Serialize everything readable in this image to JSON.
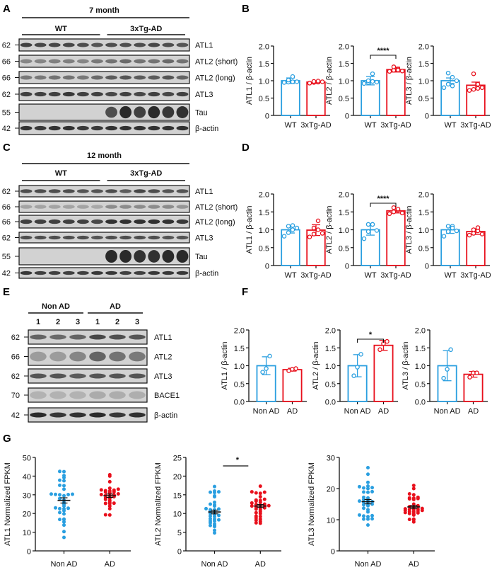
{
  "panel_labels": [
    "A",
    "B",
    "C",
    "D",
    "E",
    "F",
    "G"
  ],
  "colors": {
    "control": "#2a9fe0",
    "disease": "#e8101c",
    "axis": "#111111",
    "blot_bg": "#d2d2d2",
    "band": "#2a2a2a"
  },
  "blots": [
    {
      "id": "A",
      "title": "7 month",
      "groups": [
        {
          "name": "WT",
          "lanes": 6
        },
        {
          "name": "3xTg-AD",
          "lanes": 6
        }
      ],
      "lane_numbers": [],
      "rows": [
        {
          "mw": "62",
          "label": "ATL1",
          "intensity": [
            0.85,
            0.8,
            0.8,
            0.8,
            0.75,
            0.7,
            0.75,
            0.75,
            0.75,
            0.8,
            0.75,
            0.7
          ]
        },
        {
          "mw": "66",
          "label": "ATL2 (short)",
          "intensity": [
            0.35,
            0.35,
            0.4,
            0.4,
            0.35,
            0.45,
            0.5,
            0.55,
            0.5,
            0.5,
            0.55,
            0.5
          ]
        },
        {
          "mw": "66",
          "label": "ATL2 (long)",
          "intensity": [
            0.45,
            0.45,
            0.5,
            0.5,
            0.45,
            0.55,
            0.65,
            0.7,
            0.65,
            0.65,
            0.7,
            0.6
          ]
        },
        {
          "mw": "62",
          "label": "ATL3",
          "intensity": [
            0.85,
            0.85,
            0.85,
            0.9,
            0.85,
            0.85,
            0.8,
            0.85,
            0.8,
            0.85,
            0.8,
            0.85
          ]
        },
        {
          "mw": "55",
          "label": "Tau",
          "intensity": [
            0,
            0,
            0,
            0,
            0,
            0,
            0.75,
            1,
            0.85,
            1,
            0.9,
            0.95
          ],
          "tall": true
        },
        {
          "mw": "42",
          "label": "β-actin",
          "intensity": [
            0.95,
            0.9,
            0.95,
            0.95,
            0.9,
            0.9,
            0.95,
            0.95,
            0.95,
            0.95,
            0.95,
            0.95
          ]
        }
      ]
    },
    {
      "id": "C",
      "title": "12 month",
      "groups": [
        {
          "name": "WT",
          "lanes": 6
        },
        {
          "name": "3xTg-AD",
          "lanes": 6
        }
      ],
      "lane_numbers": [],
      "rows": [
        {
          "mw": "62",
          "label": "ATL1",
          "intensity": [
            0.75,
            0.75,
            0.75,
            0.75,
            0.7,
            0.7,
            0.75,
            0.65,
            0.8,
            0.75,
            0.7,
            0.7
          ]
        },
        {
          "mw": "66",
          "label": "ATL2 (short)",
          "intensity": [
            0.15,
            0.15,
            0.15,
            0.15,
            0.15,
            0.12,
            0.3,
            0.3,
            0.3,
            0.3,
            0.3,
            0.25
          ]
        },
        {
          "mw": "66",
          "label": "ATL2 (long)",
          "intensity": [
            0.85,
            0.85,
            0.85,
            0.85,
            0.85,
            0.8,
            0.95,
            0.95,
            0.95,
            0.95,
            0.95,
            0.9
          ]
        },
        {
          "mw": "62",
          "label": "ATL3",
          "intensity": [
            0.75,
            0.75,
            0.75,
            0.75,
            0.75,
            0.7,
            0.75,
            0.75,
            0.75,
            0.75,
            0.7,
            0.7
          ]
        },
        {
          "mw": "55",
          "label": "Tau",
          "intensity": [
            0,
            0,
            0,
            0,
            0,
            0,
            1,
            1,
            0.95,
            0.95,
            1,
            1
          ],
          "tall": true
        },
        {
          "mw": "42",
          "label": "β-actin",
          "intensity": [
            0.9,
            0.85,
            0.85,
            0.85,
            0.85,
            0.9,
            0.9,
            0.85,
            0.85,
            0.9,
            0.9,
            0.9
          ]
        }
      ]
    },
    {
      "id": "E",
      "title": "",
      "groups": [
        {
          "name": "Non AD",
          "lanes": 3
        },
        {
          "name": "AD",
          "lanes": 3
        }
      ],
      "lane_numbers": [
        "1",
        "2",
        "3",
        "1",
        "2",
        "3"
      ],
      "rows": [
        {
          "mw": "62",
          "label": "ATL1",
          "intensity": [
            0.6,
            0.55,
            0.6,
            0.8,
            0.75,
            0.7
          ]
        },
        {
          "mw": "66",
          "label": "ATL2",
          "intensity": [
            0.2,
            0.2,
            0.35,
            0.6,
            0.5,
            0.45
          ],
          "diffuse": true
        },
        {
          "mw": "62",
          "label": "ATL3",
          "intensity": [
            0.7,
            0.7,
            0.65,
            0.7,
            0.7,
            0.7
          ]
        },
        {
          "mw": "70",
          "label": "BACE1",
          "intensity": [
            0.05,
            0.05,
            0.05,
            0.1,
            0.08,
            0.07
          ],
          "diffuse": true
        },
        {
          "mw": "42",
          "label": "β-actin",
          "intensity": [
            1,
            0.9,
            0.95,
            1,
            0.9,
            0.95
          ]
        }
      ]
    }
  ],
  "chart_data": [
    {
      "panel": "B",
      "type": "bar",
      "ylabel": "ATL1 / β-actin",
      "categories": [
        "WT",
        "3xTg-AD"
      ],
      "ylim": [
        0,
        2.0
      ],
      "yticks": [
        "0",
        "0.5",
        "1.0",
        "1.5",
        "2.0"
      ],
      "values": [
        1.0,
        0.96
      ],
      "errors": [
        0.08,
        0.04
      ],
      "points": [
        [
          0.95,
          0.96,
          0.97,
          1.02,
          1.12,
          0.97
        ],
        [
          0.93,
          0.95,
          0.96,
          0.98,
          0.99,
          0.97
        ]
      ],
      "significance": ""
    },
    {
      "panel": "B",
      "type": "bar",
      "ylabel": "ATL2 / β-actin",
      "categories": [
        "WT",
        "3xTg-AD"
      ],
      "ylim": [
        0,
        2.0
      ],
      "yticks": [
        "0",
        "0.5",
        "1.0",
        "1.5",
        "2.0"
      ],
      "values": [
        1.0,
        1.32
      ],
      "errors": [
        0.12,
        0.07
      ],
      "points": [
        [
          0.92,
          0.95,
          0.98,
          1.0,
          1.2,
          0.96
        ],
        [
          1.27,
          1.3,
          1.34,
          1.4,
          1.31,
          1.28
        ]
      ],
      "significance": "****"
    },
    {
      "panel": "B",
      "type": "bar",
      "ylabel": "ATL3 / β-actin",
      "categories": [
        "WT",
        "3xTg-AD"
      ],
      "ylim": [
        0,
        2.0
      ],
      "yticks": [
        "0",
        "0.5",
        "1.0",
        "1.5",
        "2.0"
      ],
      "values": [
        1.0,
        0.87
      ],
      "errors": [
        0.08,
        0.09
      ],
      "points": [
        [
          0.8,
          0.9,
          1.1,
          1.22,
          0.85,
          1.0
        ],
        [
          0.72,
          0.75,
          0.9,
          1.2,
          0.78,
          0.8
        ]
      ],
      "significance": ""
    },
    {
      "panel": "D",
      "type": "bar",
      "ylabel": "ATL1 / β-actin",
      "categories": [
        "WT",
        "3xTg-AD"
      ],
      "ylim": [
        0,
        2.0
      ],
      "yticks": [
        "0",
        "0.5",
        "1.0",
        "1.5",
        "2.0"
      ],
      "values": [
        1.0,
        0.99
      ],
      "errors": [
        0.09,
        0.15
      ],
      "points": [
        [
          0.82,
          0.92,
          1.0,
          1.1,
          1.12,
          1.05
        ],
        [
          0.8,
          0.88,
          1.0,
          1.05,
          1.25,
          0.9
        ]
      ],
      "significance": ""
    },
    {
      "panel": "D",
      "type": "bar",
      "ylabel": "ATL2 / β-actin",
      "categories": [
        "WT",
        "3xTg-AD"
      ],
      "ylim": [
        0,
        2.0
      ],
      "yticks": [
        "0",
        "0.5",
        "1.0",
        "1.5",
        "2.0"
      ],
      "values": [
        1.0,
        1.53
      ],
      "errors": [
        0.15,
        0.06
      ],
      "points": [
        [
          0.75,
          0.95,
          1.15,
          1.15,
          1.15,
          0.98
        ],
        [
          1.45,
          1.5,
          1.55,
          1.62,
          1.58,
          1.47
        ]
      ],
      "significance": "****"
    },
    {
      "panel": "D",
      "type": "bar",
      "ylabel": "ATL3 / β-actin",
      "categories": [
        "WT",
        "3xTg-AD"
      ],
      "ylim": [
        0,
        2.0
      ],
      "yticks": [
        "0",
        "0.5",
        "1.0",
        "1.5",
        "2.0"
      ],
      "values": [
        1.0,
        0.95
      ],
      "errors": [
        0.1,
        0.08
      ],
      "points": [
        [
          0.82,
          0.95,
          1.1,
          1.1,
          1.05,
          0.97
        ],
        [
          0.85,
          0.9,
          0.97,
          1.0,
          1.06,
          0.88
        ]
      ],
      "significance": ""
    },
    {
      "panel": "F",
      "type": "bar",
      "ylabel": "ATL1 / β-actin",
      "categories": [
        "Non AD",
        "AD"
      ],
      "ylim": [
        0,
        2.0
      ],
      "yticks": [
        "0.0",
        "0.5",
        "1.0",
        "1.5",
        "2.0"
      ],
      "values": [
        1.0,
        0.89
      ],
      "errors": [
        0.25,
        0.04
      ],
      "points": [
        [
          0.82,
          0.92,
          1.27
        ],
        [
          0.86,
          0.9,
          0.92
        ]
      ],
      "significance": ""
    },
    {
      "panel": "F",
      "type": "bar",
      "ylabel": "ATL2 / β-actin",
      "categories": [
        "Non AD",
        "AD"
      ],
      "ylim": [
        0,
        2.0
      ],
      "yticks": [
        "0.0",
        "0.5",
        "1.0",
        "1.5",
        "2.0"
      ],
      "values": [
        1.0,
        1.57
      ],
      "errors": [
        0.31,
        0.14
      ],
      "points": [
        [
          0.72,
          0.96,
          1.32
        ],
        [
          1.45,
          1.62,
          1.68
        ]
      ],
      "significance": "*"
    },
    {
      "panel": "F",
      "type": "bar",
      "ylabel": "ATL3 / β-actin",
      "categories": [
        "Non AD",
        "AD"
      ],
      "ylim": [
        0,
        2.0
      ],
      "yticks": [
        "0.0",
        "0.5",
        "1.0",
        "1.5",
        "2.0"
      ],
      "values": [
        1.0,
        0.76
      ],
      "errors": [
        0.42,
        0.08
      ],
      "points": [
        [
          0.65,
          0.9,
          1.45
        ],
        [
          0.68,
          0.8,
          0.8
        ]
      ],
      "significance": ""
    },
    {
      "panel": "G",
      "type": "scatter",
      "ylabel": "ATL1 Normalized FPKM",
      "categories": [
        "Non AD",
        "AD"
      ],
      "ylim": [
        0,
        50
      ],
      "yticks": [
        "0",
        "10",
        "20",
        "30",
        "40",
        "50"
      ],
      "means": [
        27,
        29.5
      ],
      "sems": [
        1.4,
        0.9
      ],
      "significance": "",
      "points": [
        [
          7.2,
          10.3,
          13.8,
          15.5,
          16.8,
          16.8,
          17.0,
          19.8,
          20.5,
          21.5,
          22.5,
          22.8,
          22.6,
          23.0,
          24.0,
          25.0,
          26.0,
          27.2,
          28.0,
          29.5,
          30.2,
          30.4,
          30.0,
          30.1,
          30.3,
          33.0,
          34.9,
          35.1,
          37.5,
          37.8,
          39.2,
          40.3,
          42.4,
          42.5
        ],
        [
          19.2,
          19.3,
          22.6,
          24.0,
          25.3,
          25.4,
          25.5,
          26.0,
          27.0,
          27.5,
          28.2,
          28.3,
          29.0,
          29.5,
          29.6,
          30.0,
          30.1,
          30.5,
          31.0,
          31.5,
          31.6,
          32.0,
          32.2,
          32.5,
          32.6,
          33.0,
          33.5,
          37.0,
          40.0,
          40.7
        ]
      ]
    },
    {
      "panel": "G",
      "type": "scatter",
      "ylabel": "ATL2 Normalized FPKM",
      "categories": [
        "Non AD",
        "AD"
      ],
      "ylim": [
        0,
        25
      ],
      "yticks": [
        "0",
        "5",
        "10",
        "15",
        "20",
        "25"
      ],
      "means": [
        10.4,
        12.0
      ],
      "sems": [
        0.5,
        0.4
      ],
      "significance": "*",
      "points": [
        [
          4.8,
          5.5,
          6.5,
          6.8,
          6.8,
          7.2,
          7.5,
          8.0,
          8.0,
          8.3,
          8.5,
          8.6,
          9.2,
          9.3,
          9.5,
          9.8,
          10.0,
          10.4,
          10.6,
          11.0,
          11.0,
          11.2,
          11.3,
          12.0,
          12.3,
          12.5,
          13.0,
          14.5,
          14.7,
          15.6,
          15.7,
          15.8,
          16.0,
          17.2
        ],
        [
          7.4,
          7.5,
          7.9,
          8.2,
          8.5,
          8.8,
          9.2,
          9.3,
          10.0,
          10.2,
          10.5,
          11.0,
          11.2,
          11.5,
          11.6,
          11.8,
          12.0,
          12.0,
          12.1,
          12.2,
          12.4,
          12.5,
          12.8,
          13.0,
          13.3,
          13.5,
          13.6,
          13.8,
          14.5,
          15.4,
          15.5,
          15.7,
          15.8,
          17.3
        ]
      ]
    },
    {
      "panel": "G",
      "type": "scatter",
      "ylabel": "ATL3 Normalized FPKM",
      "categories": [
        "Non AD",
        "AD"
      ],
      "ylim": [
        0,
        30
      ],
      "yticks": [
        "0",
        "10",
        "20",
        "30"
      ],
      "means": [
        15.8,
        14.1
      ],
      "sems": [
        0.7,
        0.5
      ],
      "significance": "",
      "points": [
        [
          8.3,
          10.2,
          10.2,
          10.3,
          11.0,
          11.2,
          11.3,
          11.5,
          12.5,
          13.2,
          13.7,
          14.5,
          14.7,
          14.8,
          15.0,
          15.5,
          15.6,
          15.8,
          16.0,
          16.2,
          16.5,
          17.0,
          17.2,
          18.8,
          18.9,
          19.0,
          20.0,
          20.2,
          20.3,
          20.6,
          20.8,
          22.0,
          24.6,
          26.7
        ],
        [
          9.3,
          10.0,
          10.1,
          10.2,
          11.5,
          11.8,
          12.0,
          12.2,
          12.3,
          12.5,
          12.6,
          12.8,
          13.0,
          13.0,
          13.2,
          13.3,
          13.4,
          13.5,
          13.6,
          14.0,
          14.2,
          14.5,
          15.0,
          16.5,
          16.7,
          16.8,
          16.9,
          17.0,
          17.2,
          18.0,
          18.3,
          20.0,
          21.0
        ]
      ]
    }
  ]
}
